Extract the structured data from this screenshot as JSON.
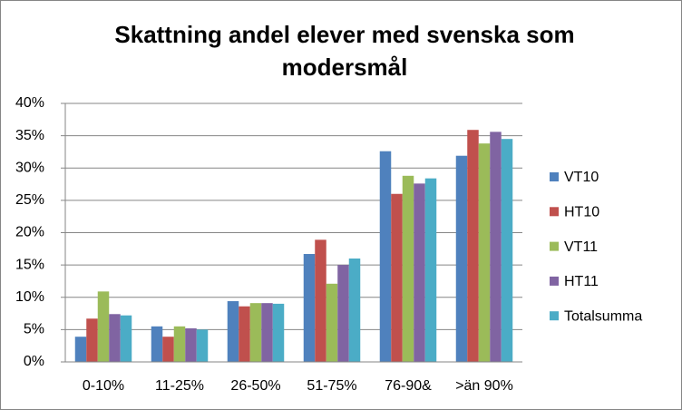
{
  "chart_data": {
    "type": "bar",
    "title": "Skattning andel elever med svenska som modersmål",
    "categories": [
      "0-10%",
      "11-25%",
      "26-50%",
      "51-75%",
      "76-90&",
      ">än 90%"
    ],
    "series": [
      {
        "name": "VT10",
        "color": "#4f81bd",
        "values": [
          3.9,
          5.5,
          9.4,
          16.7,
          32.6,
          31.9
        ]
      },
      {
        "name": "HT10",
        "color": "#c0504d",
        "values": [
          6.7,
          3.9,
          8.6,
          18.9,
          26.0,
          35.9
        ]
      },
      {
        "name": "VT11",
        "color": "#9bbb59",
        "values": [
          10.9,
          5.5,
          9.1,
          12.1,
          28.8,
          33.8
        ]
      },
      {
        "name": "HT11",
        "color": "#8064a2",
        "values": [
          7.4,
          5.2,
          9.1,
          15.0,
          27.6,
          35.6
        ]
      },
      {
        "name": "Totalsumma",
        "color": "#4bacc6",
        "values": [
          7.2,
          5.0,
          9.0,
          16.0,
          28.4,
          34.5
        ]
      }
    ],
    "ylim": [
      0,
      40
    ],
    "yticks": [
      {
        "value": 0,
        "label": "0%"
      },
      {
        "value": 5,
        "label": "5%"
      },
      {
        "value": 10,
        "label": "10%"
      },
      {
        "value": 15,
        "label": "15%"
      },
      {
        "value": 20,
        "label": "20%"
      },
      {
        "value": 25,
        "label": "25%"
      },
      {
        "value": 30,
        "label": "30%"
      },
      {
        "value": 35,
        "label": "35%"
      },
      {
        "value": 40,
        "label": "40%"
      }
    ],
    "grid": true,
    "legend": "right"
  }
}
